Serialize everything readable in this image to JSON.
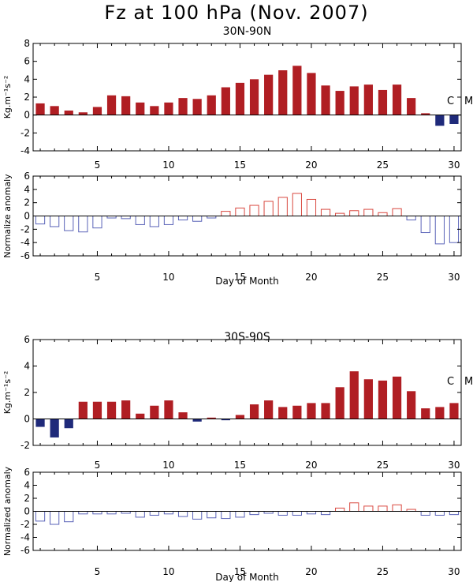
{
  "title": "Fz at 100 hPa (Nov. 2007)",
  "colors": {
    "positive": "#b01e23",
    "negative": "#1f2a7a",
    "anom_positive": "#d9483f",
    "anom_negative": "#5a63b8"
  },
  "chart_data": [
    {
      "type": "bar",
      "subtitle": "30N-90N",
      "ylabel": "Kg.m⁻¹s⁻²",
      "side_labels": [
        "C",
        "M"
      ],
      "style": "filled",
      "xlim": [
        1,
        30
      ],
      "ylim": [
        -4,
        8
      ],
      "yticks": [
        -4,
        -2,
        0,
        2,
        4,
        6,
        8
      ],
      "xticks": [
        5,
        10,
        15,
        20,
        25,
        30
      ],
      "x": [
        1,
        2,
        3,
        4,
        5,
        6,
        7,
        8,
        9,
        10,
        11,
        12,
        13,
        14,
        15,
        16,
        17,
        18,
        19,
        20,
        21,
        22,
        23,
        24,
        25,
        26,
        27,
        28,
        29,
        30
      ],
      "values": [
        1.3,
        1.0,
        0.5,
        0.3,
        0.9,
        2.2,
        2.1,
        1.4,
        1.0,
        1.4,
        1.9,
        1.8,
        2.2,
        3.1,
        3.6,
        4.0,
        4.5,
        5.0,
        5.5,
        4.7,
        3.3,
        2.7,
        3.2,
        3.4,
        2.8,
        3.4,
        1.9,
        0.2,
        -1.2,
        -1.0
      ]
    },
    {
      "type": "bar",
      "ylabel": "Normalize anomaly",
      "xlabel": "Day of Month",
      "style": "outline",
      "xlim": [
        1,
        30
      ],
      "ylim": [
        -6,
        6
      ],
      "yticks": [
        -6,
        -4,
        -2,
        0,
        2,
        4,
        6
      ],
      "xticks": [
        5,
        10,
        15,
        20,
        25,
        30
      ],
      "x": [
        1,
        2,
        3,
        4,
        5,
        6,
        7,
        8,
        9,
        10,
        11,
        12,
        13,
        14,
        15,
        16,
        17,
        18,
        19,
        20,
        21,
        22,
        23,
        24,
        25,
        26,
        27,
        28,
        29,
        30
      ],
      "values": [
        -1.2,
        -1.6,
        -2.2,
        -2.4,
        -1.8,
        -0.3,
        -0.4,
        -1.3,
        -1.6,
        -1.3,
        -0.6,
        -0.8,
        -0.3,
        0.7,
        1.2,
        1.6,
        2.2,
        2.8,
        3.4,
        2.5,
        1.0,
        0.4,
        0.8,
        1.0,
        0.5,
        1.1,
        -0.6,
        -2.5,
        -4.2,
        -4.0
      ]
    },
    {
      "type": "bar",
      "subtitle": "30S-90S",
      "ylabel": "Kg.m⁻¹s⁻²",
      "side_labels": [
        "C",
        "M"
      ],
      "style": "filled",
      "xlim": [
        1,
        30
      ],
      "ylim": [
        -2,
        6
      ],
      "yticks": [
        -2,
        0,
        2,
        4,
        6
      ],
      "xticks": [
        5,
        10,
        15,
        20,
        25,
        30
      ],
      "x": [
        1,
        2,
        3,
        4,
        5,
        6,
        7,
        8,
        9,
        10,
        11,
        12,
        13,
        14,
        15,
        16,
        17,
        18,
        19,
        20,
        21,
        22,
        23,
        24,
        25,
        26,
        27,
        28,
        29,
        30
      ],
      "values": [
        -0.6,
        -1.4,
        -0.7,
        1.3,
        1.3,
        1.3,
        1.4,
        0.4,
        1.0,
        1.4,
        0.5,
        -0.2,
        0.1,
        -0.1,
        0.3,
        1.1,
        1.4,
        0.9,
        1.0,
        1.2,
        1.2,
        2.4,
        3.6,
        3.0,
        2.9,
        3.2,
        2.1,
        0.8,
        0.9,
        1.2
      ]
    },
    {
      "type": "bar",
      "ylabel": "Normalized anomaly",
      "xlabel": "Day of Month",
      "style": "outline",
      "xlim": [
        1,
        30
      ],
      "ylim": [
        -6,
        6
      ],
      "yticks": [
        -6,
        -4,
        -2,
        0,
        2,
        4,
        6
      ],
      "xticks": [
        5,
        10,
        15,
        20,
        25,
        30
      ],
      "x": [
        1,
        2,
        3,
        4,
        5,
        6,
        7,
        8,
        9,
        10,
        11,
        12,
        13,
        14,
        15,
        16,
        17,
        18,
        19,
        20,
        21,
        22,
        23,
        24,
        25,
        26,
        27,
        28,
        29,
        30
      ],
      "values": [
        -1.5,
        -2.0,
        -1.6,
        -0.4,
        -0.4,
        -0.4,
        -0.3,
        -0.9,
        -0.6,
        -0.4,
        -0.8,
        -1.2,
        -1.0,
        -1.1,
        -0.9,
        -0.5,
        -0.3,
        -0.6,
        -0.6,
        -0.4,
        -0.5,
        0.5,
        1.3,
        0.8,
        0.8,
        1.0,
        0.3,
        -0.6,
        -0.6,
        -0.5
      ]
    }
  ]
}
